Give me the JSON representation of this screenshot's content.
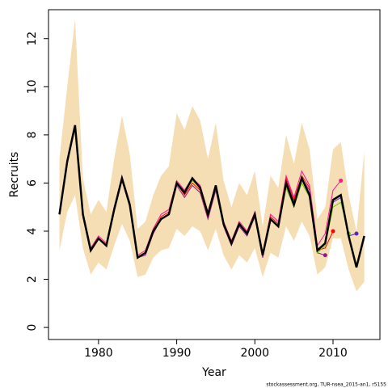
{
  "chart_data": {
    "type": "line",
    "x_label": "Year",
    "y_label": "Recruits",
    "footer": "stockassessment.org, TUR-nsea_2015-an1, r5155",
    "x": [
      1975,
      1976,
      1977,
      1978,
      1979,
      1980,
      1981,
      1982,
      1983,
      1984,
      1985,
      1986,
      1987,
      1988,
      1989,
      1990,
      1991,
      1992,
      1993,
      1994,
      1995,
      1996,
      1997,
      1998,
      1999,
      2000,
      2001,
      2002,
      2003,
      2004,
      2005,
      2006,
      2007,
      2008,
      2009,
      2010,
      2011,
      2012,
      2013,
      2014
    ],
    "band": {
      "color": "#f5deb3",
      "upper": [
        7.0,
        10.0,
        12.8,
        6.2,
        4.7,
        5.3,
        4.8,
        7.0,
        8.8,
        7.2,
        4.1,
        4.4,
        5.5,
        6.3,
        6.7,
        8.9,
        8.2,
        9.2,
        8.6,
        7.0,
        8.5,
        6.1,
        5.0,
        6.0,
        5.5,
        6.5,
        4.2,
        6.3,
        5.8,
        8.0,
        6.8,
        8.5,
        7.4,
        4.5,
        5.0,
        7.4,
        7.7,
        5.5,
        4.0,
        7.3
      ],
      "lower": [
        3.2,
        4.8,
        5.5,
        3.3,
        2.2,
        2.7,
        2.4,
        3.4,
        4.3,
        3.6,
        2.1,
        2.2,
        2.9,
        3.2,
        3.3,
        4.1,
        3.8,
        4.2,
        4.0,
        3.2,
        4.1,
        3.0,
        2.4,
        3.0,
        2.7,
        3.3,
        2.1,
        3.1,
        2.9,
        4.2,
        3.6,
        4.4,
        3.8,
        2.2,
        2.5,
        3.7,
        3.7,
        2.4,
        1.5,
        1.9
      ]
    },
    "series": [
      {
        "color": "#8b1a8b",
        "values": [
          4.7,
          6.8,
          8.3,
          4.6,
          3.2,
          3.7,
          3.4,
          4.8,
          6.1,
          5.0,
          2.9,
          3.0,
          3.9,
          4.5,
          4.7,
          5.9,
          5.4,
          5.9,
          5.6,
          4.5,
          5.7,
          4.2,
          3.4,
          4.2,
          3.8,
          4.6,
          2.9,
          4.5,
          4.2,
          6.1,
          5.2,
          6.2,
          5.7,
          3.1,
          3.0,
          null,
          null,
          null,
          null,
          null
        ]
      },
      {
        "color": "#ff0000",
        "values": [
          4.7,
          6.9,
          8.3,
          4.7,
          3.2,
          3.7,
          3.4,
          4.9,
          6.1,
          5.1,
          2.9,
          3.1,
          4.0,
          4.6,
          4.8,
          6.0,
          5.5,
          6.0,
          5.7,
          4.6,
          5.8,
          4.3,
          3.5,
          4.3,
          3.9,
          4.7,
          3.0,
          4.6,
          4.3,
          6.2,
          5.3,
          6.3,
          5.8,
          3.2,
          3.3,
          4.0,
          null,
          null,
          null,
          null
        ]
      },
      {
        "color": "#ff1493",
        "values": [
          4.8,
          7.0,
          8.4,
          4.8,
          3.3,
          3.8,
          3.5,
          5.0,
          6.2,
          5.2,
          3.0,
          3.2,
          4.1,
          4.7,
          4.9,
          6.1,
          5.7,
          6.2,
          5.9,
          4.8,
          5.9,
          4.4,
          3.6,
          4.4,
          4.0,
          4.8,
          3.1,
          4.7,
          4.4,
          6.3,
          5.4,
          6.5,
          5.9,
          3.4,
          3.9,
          5.7,
          6.1,
          null,
          null,
          null
        ]
      },
      {
        "color": "#66cc00",
        "values": [
          4.7,
          6.9,
          8.4,
          4.7,
          3.2,
          3.7,
          3.4,
          4.9,
          6.2,
          5.1,
          2.9,
          3.1,
          4.0,
          4.5,
          4.7,
          6.0,
          5.6,
          6.1,
          5.8,
          4.7,
          5.8,
          4.3,
          3.5,
          4.3,
          3.9,
          4.7,
          3.0,
          4.5,
          4.2,
          5.8,
          5.0,
          6.0,
          5.4,
          3.1,
          3.4,
          5.0,
          5.2,
          3.9,
          null,
          null
        ]
      },
      {
        "color": "#5522cc",
        "values": [
          4.7,
          6.9,
          8.4,
          4.7,
          3.2,
          3.7,
          3.4,
          4.9,
          6.2,
          5.1,
          2.9,
          3.1,
          4.0,
          4.5,
          4.7,
          6.0,
          5.6,
          6.2,
          5.8,
          4.7,
          5.9,
          4.3,
          3.5,
          4.3,
          3.9,
          4.7,
          3.0,
          4.5,
          4.2,
          6.0,
          5.1,
          6.2,
          5.5,
          3.2,
          3.5,
          5.2,
          5.4,
          3.8,
          3.9,
          null
        ]
      },
      {
        "color": "#000000",
        "values": [
          4.7,
          6.9,
          8.4,
          4.7,
          3.2,
          3.7,
          3.4,
          4.9,
          6.2,
          5.1,
          2.9,
          3.1,
          4.0,
          4.5,
          4.7,
          6.0,
          5.6,
          6.2,
          5.8,
          4.7,
          5.9,
          4.3,
          3.5,
          4.3,
          3.9,
          4.7,
          3.0,
          4.5,
          4.2,
          6.0,
          5.1,
          6.2,
          5.5,
          3.2,
          3.5,
          5.3,
          5.5,
          3.8,
          2.5,
          3.8
        ]
      }
    ],
    "xlim": [
      1973.6,
      2016.0
    ],
    "ylim": [
      -0.5,
      13.2
    ],
    "xticks": [
      1980,
      1990,
      2000,
      2010
    ],
    "yticks": [
      0,
      2,
      4,
      6,
      8,
      10,
      12
    ]
  }
}
